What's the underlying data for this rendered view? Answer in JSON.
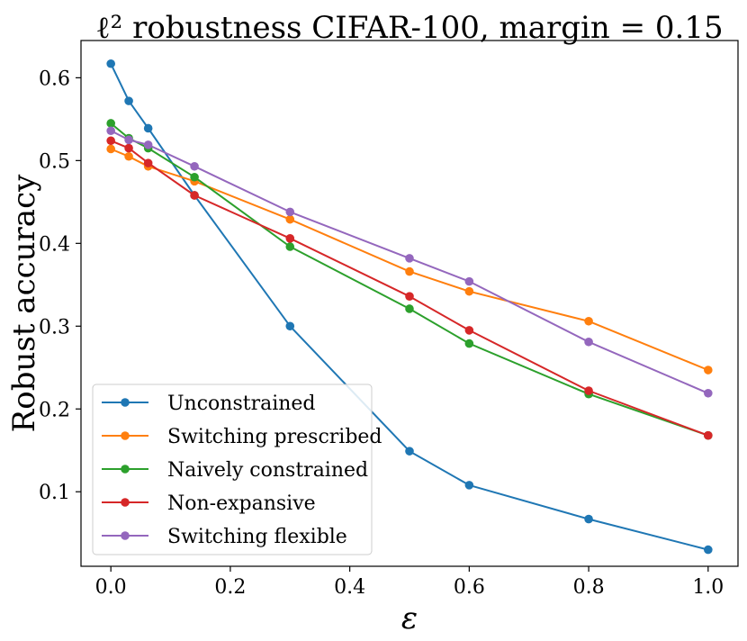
{
  "chart_data": {
    "type": "line",
    "title": "ℓ² robustness CIFAR-100, margin = 0.15",
    "xlabel": "ε",
    "ylabel": "Robust accuracy",
    "xlim": [
      -0.05,
      1.05
    ],
    "ylim": [
      0.01,
      0.645
    ],
    "x_ticks": [
      0.0,
      0.2,
      0.4,
      0.6,
      0.8,
      1.0
    ],
    "x_tick_labels": [
      "0.0",
      "0.2",
      "0.4",
      "0.6",
      "0.8",
      "1.0"
    ],
    "y_ticks": [
      0.1,
      0.2,
      0.3,
      0.4,
      0.5,
      0.6
    ],
    "y_tick_labels": [
      "0.1",
      "0.2",
      "0.3",
      "0.4",
      "0.5",
      "0.6"
    ],
    "grid": false,
    "legend_position": "lower-left",
    "x": [
      0.0,
      0.03,
      0.0625,
      0.14,
      0.3,
      0.5,
      0.6,
      0.8,
      1.0
    ],
    "series": [
      {
        "name": "Unconstrained",
        "color": "#1f77b4",
        "values": [
          0.617,
          0.572,
          0.539,
          0.458,
          0.3,
          0.149,
          0.108,
          0.067,
          0.03
        ]
      },
      {
        "name": "Switching prescribed",
        "color": "#ff7f0e",
        "values": [
          0.514,
          0.505,
          0.493,
          0.475,
          0.429,
          0.366,
          0.342,
          0.306,
          0.247
        ]
      },
      {
        "name": "Naively constrained",
        "color": "#2ca02c",
        "values": [
          0.545,
          0.527,
          0.515,
          0.48,
          0.396,
          0.321,
          0.279,
          0.218,
          0.168
        ]
      },
      {
        "name": "Non-expansive",
        "color": "#d62728",
        "values": [
          0.524,
          0.515,
          0.497,
          0.458,
          0.406,
          0.336,
          0.295,
          0.222,
          0.168
        ]
      },
      {
        "name": "Switching flexible",
        "color": "#9467bd",
        "values": [
          0.536,
          0.525,
          0.519,
          0.493,
          0.438,
          0.382,
          0.354,
          0.281,
          0.219
        ]
      }
    ]
  }
}
